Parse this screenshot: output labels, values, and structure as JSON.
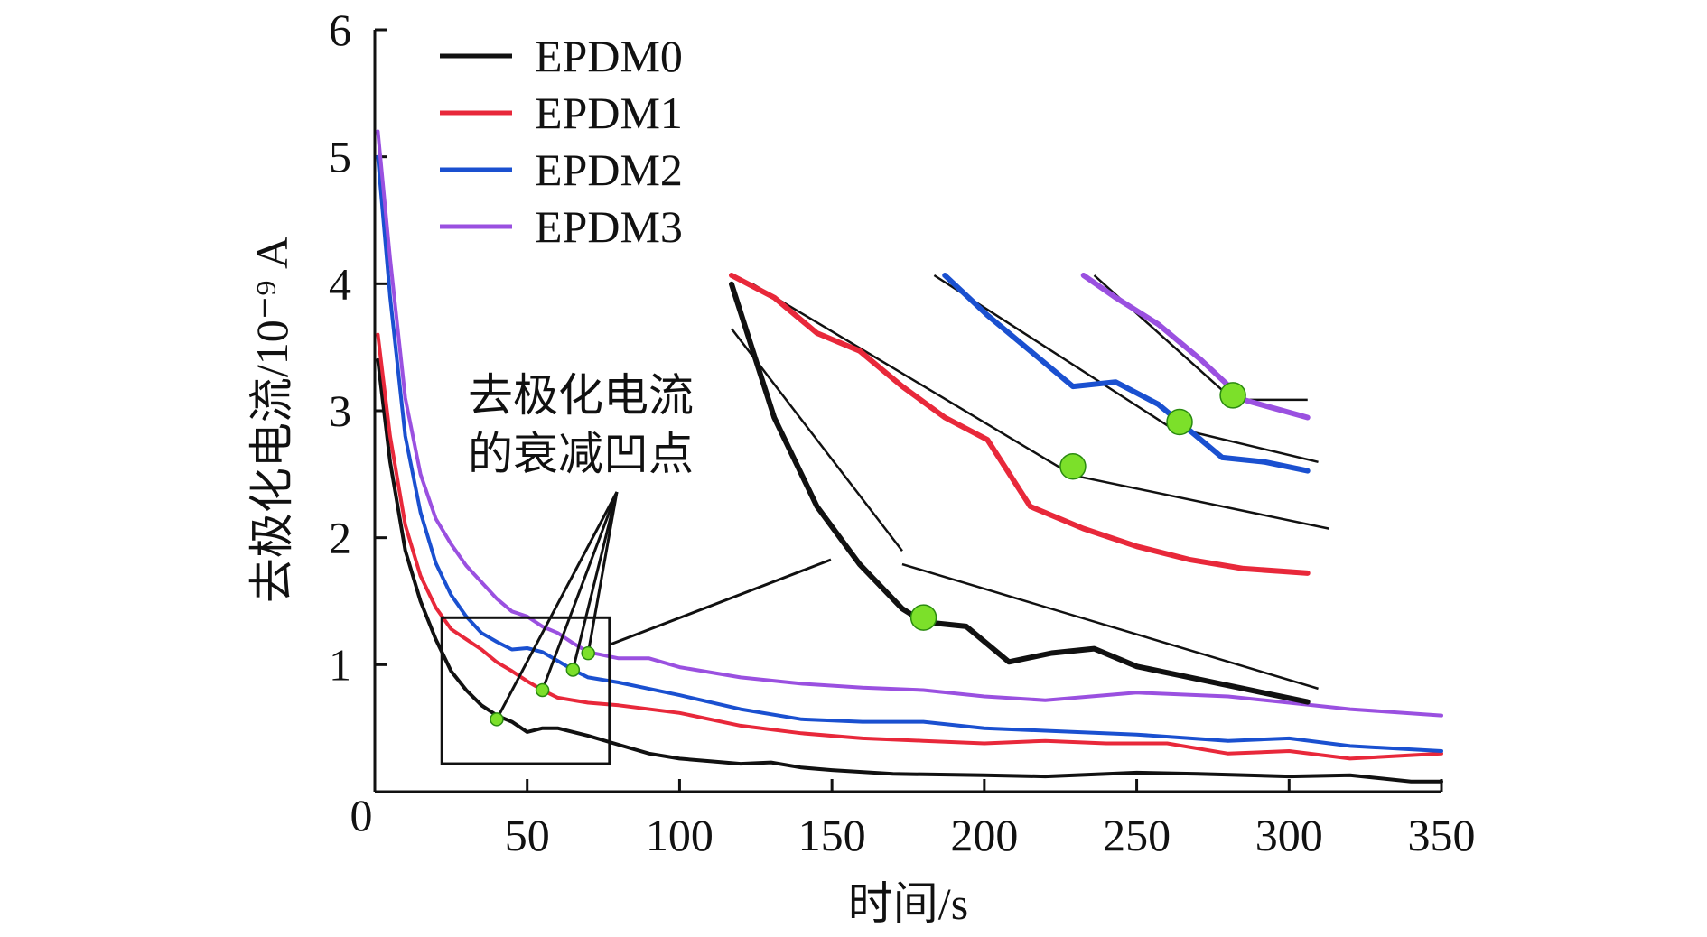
{
  "chart_data": {
    "type": "line",
    "xlabel": "时间/s",
    "ylabel": "去极化电流/10⁻⁹ A",
    "xlim": [
      0,
      350
    ],
    "ylim": [
      0,
      6
    ],
    "x_ticks": [
      0,
      50,
      100,
      150,
      200,
      250,
      300,
      350
    ],
    "y_ticks": [
      1,
      2,
      3,
      4,
      5,
      6
    ],
    "origin_label": "0",
    "grid": false,
    "legend": "top-left",
    "colors": {
      "EPDM0": "#111111",
      "EPDM1": "#e8283a",
      "EPDM2": "#1a50d0",
      "EPDM3": "#9a50e0",
      "dip_marker": "#7ce02a"
    },
    "series": [
      {
        "name": "EPDM0",
        "x": [
          1,
          5,
          10,
          15,
          20,
          25,
          30,
          35,
          40,
          45,
          50,
          55,
          60,
          70,
          80,
          90,
          100,
          110,
          120,
          130,
          140,
          150,
          170,
          200,
          220,
          250,
          270,
          300,
          320,
          340,
          350
        ],
        "y": [
          3.4,
          2.6,
          1.9,
          1.5,
          1.2,
          0.95,
          0.8,
          0.68,
          0.6,
          0.55,
          0.47,
          0.5,
          0.5,
          0.44,
          0.37,
          0.3,
          0.26,
          0.24,
          0.22,
          0.23,
          0.19,
          0.17,
          0.14,
          0.13,
          0.12,
          0.15,
          0.14,
          0.12,
          0.13,
          0.08,
          0.08
        ]
      },
      {
        "name": "EPDM1",
        "x": [
          1,
          5,
          10,
          15,
          20,
          25,
          30,
          35,
          40,
          45,
          50,
          55,
          60,
          70,
          80,
          100,
          120,
          140,
          160,
          180,
          200,
          220,
          240,
          260,
          280,
          300,
          320,
          350
        ],
        "y": [
          3.6,
          2.8,
          2.1,
          1.7,
          1.45,
          1.28,
          1.2,
          1.12,
          1.02,
          0.95,
          0.87,
          0.8,
          0.74,
          0.7,
          0.68,
          0.62,
          0.52,
          0.46,
          0.42,
          0.4,
          0.38,
          0.4,
          0.38,
          0.38,
          0.3,
          0.32,
          0.26,
          0.3
        ]
      },
      {
        "name": "EPDM2",
        "x": [
          1,
          5,
          10,
          15,
          20,
          25,
          30,
          35,
          40,
          45,
          50,
          55,
          60,
          65,
          70,
          80,
          100,
          120,
          140,
          160,
          180,
          200,
          220,
          250,
          280,
          300,
          320,
          350
        ],
        "y": [
          5.0,
          3.9,
          2.8,
          2.2,
          1.8,
          1.55,
          1.38,
          1.25,
          1.18,
          1.12,
          1.13,
          1.1,
          1.03,
          0.96,
          0.9,
          0.86,
          0.76,
          0.65,
          0.57,
          0.55,
          0.55,
          0.5,
          0.48,
          0.45,
          0.4,
          0.42,
          0.36,
          0.32
        ]
      },
      {
        "name": "EPDM3",
        "x": [
          1,
          5,
          10,
          15,
          20,
          25,
          30,
          35,
          40,
          45,
          50,
          55,
          60,
          65,
          70,
          80,
          90,
          100,
          120,
          140,
          160,
          180,
          200,
          220,
          250,
          280,
          300,
          320,
          350
        ],
        "y": [
          5.2,
          4.2,
          3.1,
          2.5,
          2.15,
          1.95,
          1.78,
          1.65,
          1.52,
          1.42,
          1.38,
          1.3,
          1.25,
          1.17,
          1.1,
          1.05,
          1.05,
          0.98,
          0.9,
          0.85,
          0.82,
          0.8,
          0.75,
          0.72,
          0.78,
          0.75,
          0.7,
          0.65,
          0.6
        ]
      }
    ],
    "dip_points": [
      {
        "series": "EPDM0",
        "x": 40,
        "y": 0.57
      },
      {
        "series": "EPDM1",
        "x": 55,
        "y": 0.8
      },
      {
        "series": "EPDM2",
        "x": 65,
        "y": 0.96
      },
      {
        "series": "EPDM3",
        "x": 70,
        "y": 1.09
      }
    ],
    "annotation": {
      "line1": "去极化电流",
      "line2": "的衰减凹点"
    },
    "zoom_box": {
      "x": [
        22,
        77
      ],
      "y": [
        0.22,
        1.37
      ]
    },
    "inset": {
      "xlim": [
        22,
        77
      ],
      "ylim": [
        0.22,
        1.37
      ],
      "zoom_factor": 3.5,
      "series": [
        {
          "name": "EPDM0",
          "x": [
            22,
            26,
            30,
            34,
            38,
            40,
            44,
            48,
            52,
            56,
            60,
            64,
            68,
            72,
            76
          ],
          "y": [
            1.35,
            1.05,
            0.85,
            0.72,
            0.62,
            0.59,
            0.58,
            0.5,
            0.52,
            0.53,
            0.49,
            0.47,
            0.45,
            0.43,
            0.41
          ]
        },
        {
          "name": "EPDM1",
          "x": [
            22,
            26,
            30,
            34,
            38,
            42,
            46,
            50,
            55,
            60,
            65,
            70,
            76
          ],
          "y": [
            1.37,
            1.32,
            1.24,
            1.2,
            1.12,
            1.05,
            1.0,
            0.85,
            0.8,
            0.76,
            0.73,
            0.71,
            0.7
          ]
        },
        {
          "name": "EPDM2",
          "x": [
            42,
            46,
            50,
            54,
            58,
            62,
            65,
            68,
            72,
            76
          ],
          "y": [
            1.37,
            1.28,
            1.2,
            1.12,
            1.13,
            1.08,
            1.02,
            0.96,
            0.95,
            0.93
          ]
        },
        {
          "name": "EPDM3",
          "x": [
            55,
            58,
            62,
            66,
            70,
            73,
            76
          ],
          "y": [
            1.37,
            1.32,
            1.26,
            1.18,
            1.09,
            1.07,
            1.05
          ]
        }
      ],
      "fit_lines": [
        [
          [
            22,
            1.25
          ],
          [
            38,
            0.75
          ]
        ],
        [
          [
            38,
            0.72
          ],
          [
            77,
            0.44
          ]
        ],
        [
          [
            24,
            1.35
          ],
          [
            54,
            0.92
          ]
        ],
        [
          [
            54,
            0.92
          ],
          [
            78,
            0.8
          ]
        ],
        [
          [
            41,
            1.37
          ],
          [
            63,
            1.03
          ]
        ],
        [
          [
            63,
            1.03
          ],
          [
            77,
            0.95
          ]
        ],
        [
          [
            56,
            1.37
          ],
          [
            69,
            1.09
          ]
        ],
        [
          [
            69,
            1.09
          ],
          [
            76,
            1.09
          ]
        ]
      ],
      "dip_points": [
        {
          "series": "EPDM0",
          "x": 40,
          "y": 0.6
        },
        {
          "series": "EPDM1",
          "x": 54,
          "y": 0.94
        },
        {
          "series": "EPDM2",
          "x": 64,
          "y": 1.04
        },
        {
          "series": "EPDM3",
          "x": 69,
          "y": 1.1
        }
      ]
    }
  }
}
